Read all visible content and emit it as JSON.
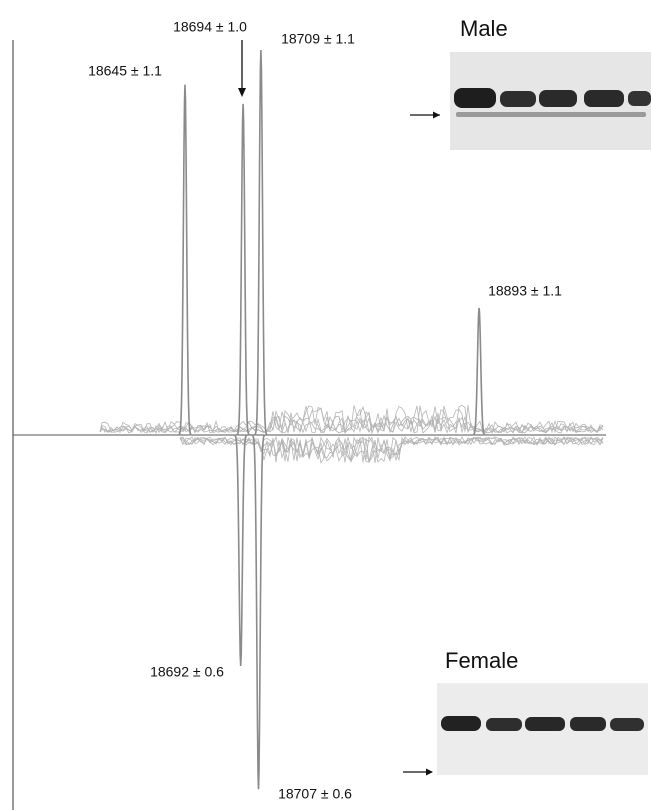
{
  "chart_data": {
    "type": "mirror-spectrum",
    "xlim": [
      18500,
      19000
    ],
    "ylim": [
      -100,
      100
    ],
    "series": [
      {
        "name": "Male",
        "color": "#8a8a8a",
        "direction": "up",
        "x": [
          18645,
          18694,
          18709,
          18893
        ],
        "errors": [
          1.1,
          1.0,
          1.1,
          1.1
        ],
        "values": [
          91,
          86,
          100,
          33
        ],
        "value_labels": [
          "18645 ± 1.1",
          "18694 ± 1.0",
          "18709 ± 1.1",
          "18893 ± 1.1"
        ]
      },
      {
        "name": "Female",
        "color": "#8a8a8a",
        "direction": "down",
        "x": [
          18692,
          18707
        ],
        "errors": [
          0.6,
          0.6
        ],
        "values": [
          -60,
          -92
        ],
        "value_labels": [
          "18692 ± 0.6",
          "18707 ± 0.6"
        ]
      }
    ]
  }
}
